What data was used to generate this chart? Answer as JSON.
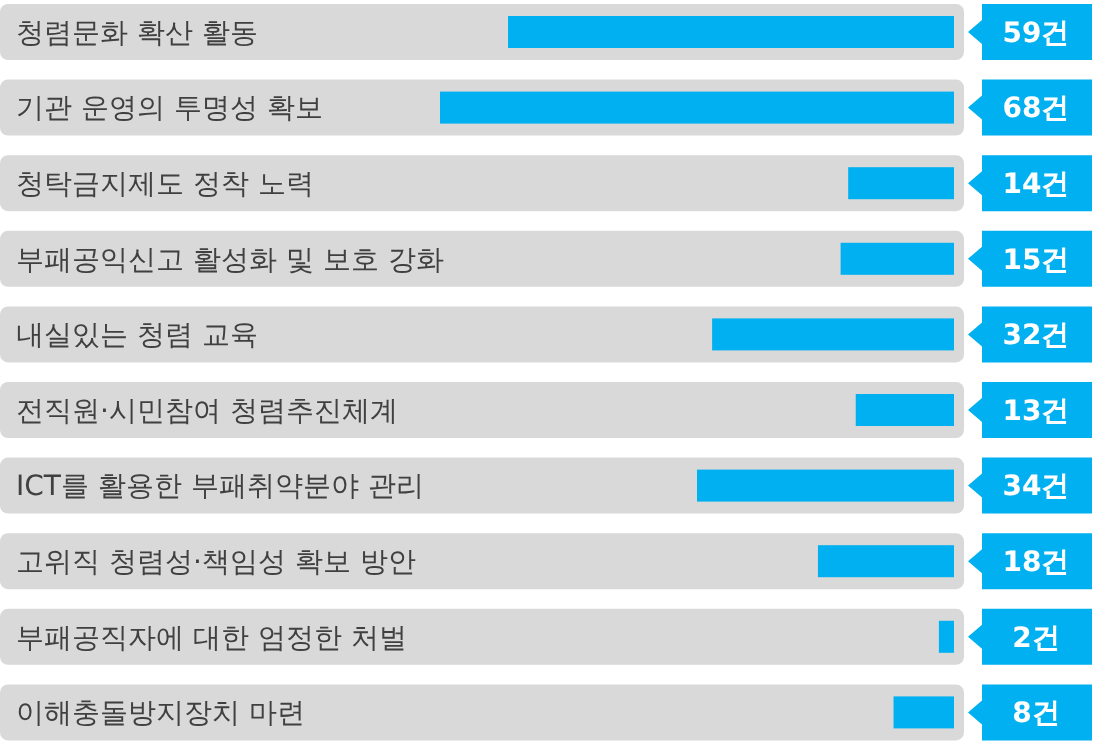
{
  "chart_data": {
    "type": "bar",
    "orientation": "horizontal",
    "categories": [
      "청렴문화 확산 활동",
      "기관 운영의 투명성 확보",
      "청탁금지제도 정착 노력",
      "부패공익신고 활성화 및 보호 강화",
      "내실있는 청렴 교육",
      "전직원·시민참여 청렴추진체계",
      "ICT를 활용한 부패취약분야 관리",
      "고위직 청렴성·책임성 확보 방안",
      "부패공직자에 대한 엄정한 처벌",
      "이해충돌방지장치 마련"
    ],
    "values": [
      59,
      68,
      14,
      15,
      32,
      13,
      34,
      18,
      2,
      8
    ],
    "value_labels": [
      "59건",
      "68건",
      "14건",
      "15건",
      "32건",
      "13건",
      "34건",
      "18건",
      "2건",
      "8건"
    ],
    "color": "#00b0f0",
    "bands": [
      {
        "axis": "y",
        "from": "청렴문화 확산 활동",
        "to": "청렴문화 확산 활동",
        "color": "#d9d9d9"
      },
      {
        "axis": "y",
        "from": "기관 운영의 투명성 확보",
        "to": "기관 운영의 투명성 확보",
        "color": "#d9d9d9"
      },
      {
        "axis": "y",
        "from": "청탁금지제도 정착 노력",
        "to": "청탁금지제도 정착 노력",
        "color": "#d9d9d9"
      },
      {
        "axis": "y",
        "from": "부패공익신고 활성화 및 보호 강화",
        "to": "부패공익신고 활성화 및 보호 강화",
        "color": "#d9d9d9"
      },
      {
        "axis": "y",
        "from": "내실있는 청렴 교육",
        "to": "내실있는 청렴 교육",
        "color": "#d9d9d9"
      },
      {
        "axis": "y",
        "from": "전직원·시민참여 청렴추진체계",
        "to": "전직원·시민참여 청렴추진체계",
        "color": "#d9d9d9"
      },
      {
        "axis": "y",
        "from": "ICT를 활용한 부패취약분야 관리",
        "to": "ICT를 활용한 부패취약분야 관리",
        "color": "#d9d9d9"
      },
      {
        "axis": "y",
        "from": "고위직 청렴성·책임성 확보 방안",
        "to": "고위직 청렴성·책임성 확보 방안",
        "color": "#d9d9d9"
      },
      {
        "axis": "y",
        "from": "부패공직자에 대한 엄정한 처벌",
        "to": "부패공직자에 대한 엄정한 처벌",
        "color": "#d9d9d9"
      },
      {
        "axis": "y",
        "from": "이해충돌방지장치 마련",
        "to": "이해충돌방지장치 마련",
        "color": "#d9d9d9"
      }
    ]
  }
}
